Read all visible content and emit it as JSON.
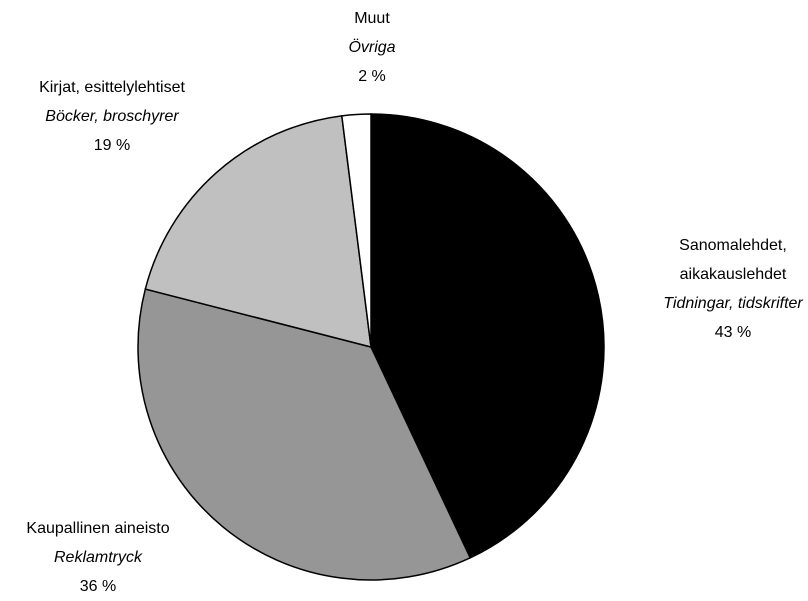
{
  "chart_data": {
    "type": "pie",
    "categories": [
      "Sanomalehdet, aikakauslehdet",
      "Kaupallinen aineisto",
      "Kirjat, esittelylehtiset",
      "Muut"
    ],
    "categories_sv": [
      "Tidningar, tidskrifter",
      "Reklamtryck",
      "Böcker, broschyrer",
      "Övriga"
    ],
    "values": [
      43,
      36,
      19,
      2
    ],
    "value_labels": [
      "43 %",
      "36 %",
      "19 %",
      "2 %"
    ],
    "colors": [
      "#000000",
      "#969696",
      "#c0c0c0",
      "#ffffff"
    ]
  }
}
